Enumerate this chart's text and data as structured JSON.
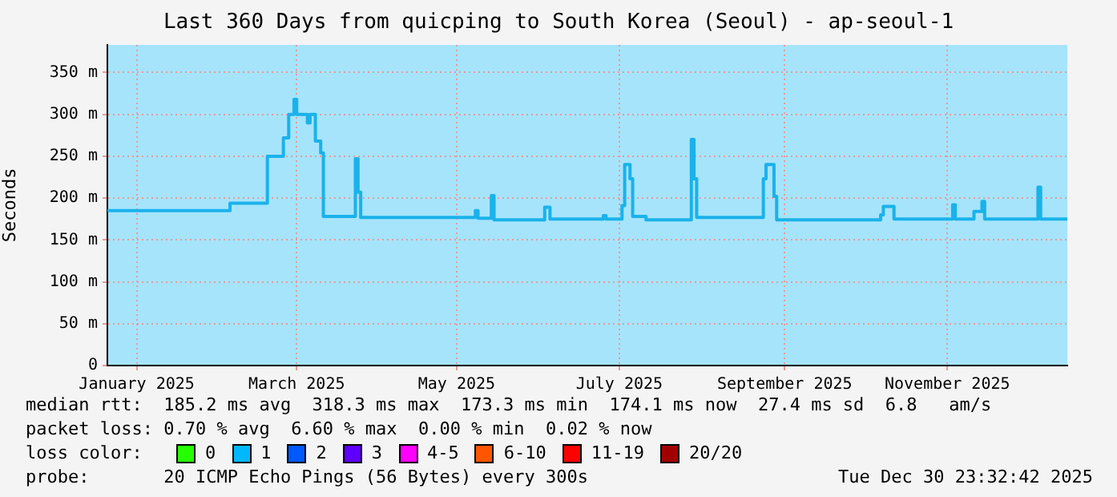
{
  "chart_data": {
    "type": "step",
    "title": "Last 360 Days from quicping to South Korea (Seoul) - ap-seoul-1",
    "ylabel": "Seconds",
    "x": [
      "2025-01-04",
      "2025-02-19",
      "2025-03-05",
      "2025-03-11",
      "2025-03-13",
      "2025-03-15",
      "2025-03-16",
      "2025-03-20",
      "2025-03-21",
      "2025-03-23",
      "2025-03-25",
      "2025-03-26",
      "2025-04-07",
      "2025-04-08",
      "2025-04-09",
      "2025-05-22",
      "2025-05-23",
      "2025-05-28",
      "2025-05-29",
      "2025-06-17",
      "2025-06-19",
      "2025-07-09",
      "2025-07-10",
      "2025-07-16",
      "2025-07-17",
      "2025-07-19",
      "2025-07-20",
      "2025-07-25",
      "2025-08-11",
      "2025-08-12",
      "2025-08-13",
      "2025-09-07",
      "2025-09-08",
      "2025-09-11",
      "2025-09-12",
      "2025-10-21",
      "2025-10-22",
      "2025-10-26",
      "2025-11-17",
      "2025-11-18",
      "2025-11-25",
      "2025-11-28",
      "2025-11-29",
      "2025-12-19",
      "2025-12-20",
      "2025-12-30"
    ],
    "series": [
      {
        "color": "#1ab2ea",
        "values": [
          185,
          194,
          250,
          272,
          300,
          318,
          300,
          290,
          300,
          268,
          254,
          178,
          247,
          207,
          177,
          185,
          176,
          203,
          174,
          189,
          175,
          179,
          175,
          191,
          240,
          223,
          178,
          174,
          270,
          223,
          177,
          223,
          240,
          202,
          174,
          180,
          190,
          175,
          192,
          175,
          184,
          196,
          175,
          213,
          175,
          175
        ]
      }
    ],
    "xlim": [
      "2025-01-04",
      "2025-12-30"
    ],
    "xticks": [
      {
        "value": "2025-01-15",
        "label": "January 2025"
      },
      {
        "value": "2025-03-16",
        "label": "March 2025"
      },
      {
        "value": "2025-05-15",
        "label": "May 2025"
      },
      {
        "value": "2025-07-15",
        "label": "July 2025"
      },
      {
        "value": "2025-09-15",
        "label": "September 2025"
      },
      {
        "value": "2025-11-15",
        "label": "November 2025"
      }
    ],
    "ylim": [
      0,
      383
    ],
    "yticks": [
      0,
      {
        "value": 50,
        "label": "50 m"
      },
      {
        "value": 100,
        "label": "100 m"
      },
      {
        "value": 150,
        "label": "150 m"
      },
      {
        "value": 200,
        "label": "200 m"
      },
      {
        "value": 250,
        "label": "250 m"
      },
      {
        "value": 300,
        "label": "300 m"
      },
      {
        "value": 350,
        "label": "350 m"
      }
    ],
    "grid": true,
    "legend": false,
    "annotations": [
      "median rtt:  185.2 ms avg  318.3 ms max  173.3 ms min  174.1 ms now  27.4 ms sd  6.8   am/s",
      "packet loss: 0.70 % avg  6.60 % max  0.00 % min  0.02 % now",
      "loss color:",
      "0",
      "1",
      "2",
      "3",
      "4-5",
      "6-10",
      "11-19",
      "20/20",
      "probe:       20 ICMP Echo Pings (56 Bytes) every 300s",
      "Tue Dec 30 23:32:42 2025"
    ]
  }
}
